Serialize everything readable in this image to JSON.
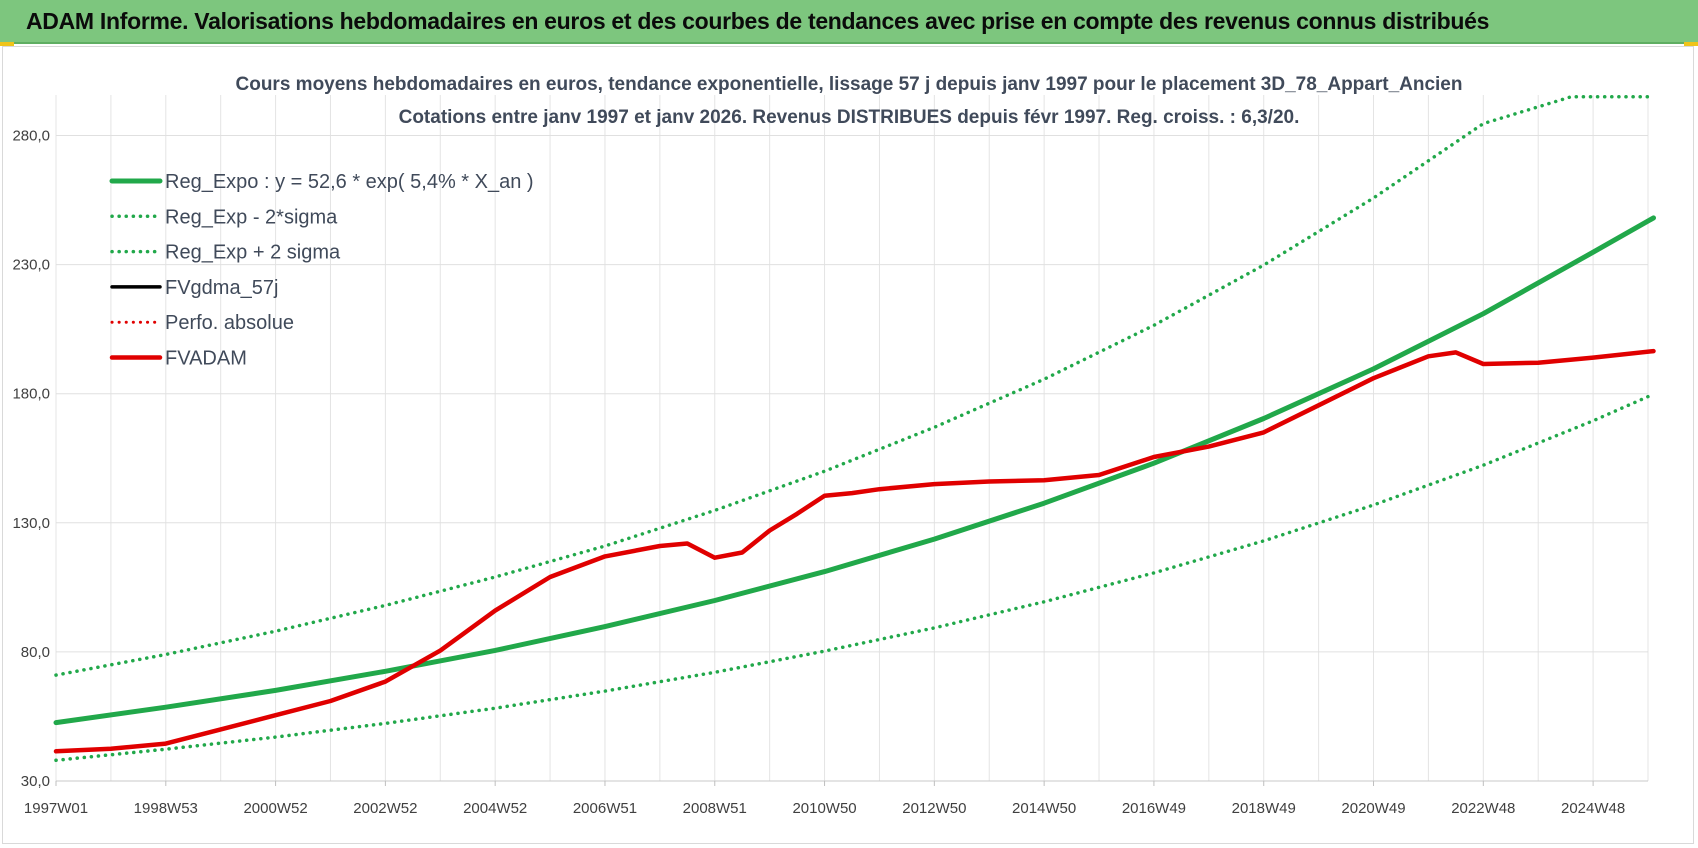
{
  "header": {
    "title": "ADAM Informe. Valorisations hebdomadaires en euros et des courbes de tendances avec prise en compte des revenus connus distribués",
    "banner_color": "#7dc67e"
  },
  "chart_data": {
    "type": "line",
    "title": "Cours moyens hebdomadaires en euros, tendance exponentielle, lissage 57 j depuis janv 1997  pour le placement 3D_78_Appart_Ancien",
    "subtitle": "Cotations entre janv 1997 et janv 2026. Revenus DISTRIBUES depuis févr 1997. Reg. croiss. : 6,3/20.",
    "xlabel": "",
    "ylabel": "",
    "x_range": [
      1997.0,
      2026.0
    ],
    "ylim": [
      30,
      295
    ],
    "yticks": [
      30,
      80,
      130,
      180,
      230,
      280
    ],
    "ytick_labels": [
      "30,0",
      "80,0",
      "130,0",
      "180,0",
      "230,0",
      "280,0"
    ],
    "xticks": [
      1997.0,
      1999.0,
      2001.0,
      2003.0,
      2005.0,
      2007.0,
      2009.0,
      2011.0,
      2013.0,
      2015.0,
      2017.0,
      2019.0,
      2021.0,
      2023.0,
      2025.0
    ],
    "xtick_labels": [
      "1997W01",
      "1998W53",
      "2000W52",
      "2002W52",
      "2004W52",
      "2006W51",
      "2008W51",
      "2010W50",
      "2012W50",
      "2014W50",
      "2016W49",
      "2018W49",
      "2020W49",
      "2022W48",
      "2024W48"
    ],
    "legend_position": "top-left",
    "grid": true,
    "series": [
      {
        "name": "Reg_Expo : y = 52,6 * exp( 5,4% *  X_an )",
        "color": "#21a84a",
        "style": "solid",
        "width": 5,
        "x": [
          1997,
          1999,
          2001,
          2003,
          2005,
          2007,
          2009,
          2011,
          2013,
          2015,
          2017,
          2019,
          2021,
          2023,
          2025,
          2026.1
        ],
        "values": [
          52.6,
          58.6,
          65.1,
          72.5,
          80.6,
          89.8,
          99.9,
          111.1,
          123.7,
          137.6,
          153.1,
          170.4,
          189.6,
          211.0,
          234.8,
          248.1
        ]
      },
      {
        "name": "Reg_Exp - 2*sigma",
        "color": "#21a84a",
        "style": "dotted",
        "width": 3.5,
        "x": [
          1997,
          1999,
          2001,
          2003,
          2005,
          2007,
          2009,
          2011,
          2013,
          2015,
          2017,
          2019,
          2021,
          2023,
          2025,
          2026.1
        ],
        "values": [
          38.0,
          42.3,
          47.0,
          52.3,
          58.2,
          64.8,
          72.1,
          80.3,
          89.3,
          99.4,
          110.6,
          123.0,
          136.9,
          152.3,
          169.5,
          179.8
        ]
      },
      {
        "name": "Reg_Exp + 2 sigma",
        "color": "#21a84a",
        "style": "dotted",
        "width": 3.5,
        "x": [
          1997,
          1999,
          2001,
          2003,
          2005,
          2007,
          2009,
          2011,
          2013,
          2015,
          2017,
          2019,
          2021,
          2023,
          2024.6,
          2026.1
        ],
        "values": [
          71.0,
          79.0,
          88.0,
          98.0,
          109.0,
          121.0,
          134.8,
          150.0,
          167.0,
          185.6,
          206.5,
          229.8,
          255.8,
          284.6,
          295.0,
          295.0
        ]
      },
      {
        "name": "FVgdma_57j",
        "color": "#000000",
        "style": "solid",
        "width": 3.5,
        "x": [
          1997,
          1998,
          1999,
          2000,
          2001,
          2002,
          2003,
          2004,
          2005,
          2006,
          2007,
          2008,
          2008.5,
          2009,
          2009.5,
          2010,
          2010.5,
          2011,
          2011.5,
          2012,
          2013,
          2014,
          2015,
          2016,
          2017,
          2018,
          2019,
          2020,
          2021,
          2022,
          2022.5,
          2023,
          2024,
          2025,
          2026.1
        ],
        "values": [
          41.5,
          42.5,
          44.5,
          50.0,
          55.5,
          61.0,
          68.5,
          80.5,
          96.0,
          109.0,
          117.0,
          121.0,
          122.0,
          116.5,
          118.5,
          127.0,
          133.5,
          140.5,
          141.5,
          143.0,
          145.0,
          146.0,
          146.5,
          148.5,
          155.5,
          159.5,
          165.0,
          175.5,
          186.0,
          194.5,
          196.0,
          191.5,
          192.0,
          194.0,
          196.5
        ]
      },
      {
        "name": "Perfo. absolue",
        "color": "#e00000",
        "style": "dotted",
        "width": 3,
        "x": [
          1997,
          1998,
          1999,
          2000,
          2001,
          2002,
          2003,
          2004,
          2005,
          2006,
          2007,
          2008,
          2008.5,
          2009,
          2009.5,
          2010,
          2010.5,
          2011,
          2011.5,
          2012,
          2013,
          2014,
          2015,
          2016,
          2017,
          2018,
          2019,
          2020,
          2021,
          2022,
          2022.5,
          2023,
          2024,
          2025,
          2026.1
        ],
        "values": [
          41.5,
          42.5,
          44.5,
          50.0,
          55.5,
          61.0,
          68.5,
          80.5,
          96.0,
          109.0,
          117.0,
          121.0,
          122.0,
          116.5,
          118.5,
          127.0,
          133.5,
          140.5,
          141.5,
          143.0,
          145.0,
          146.0,
          146.5,
          148.5,
          155.5,
          159.5,
          165.0,
          175.5,
          186.0,
          194.5,
          196.0,
          191.5,
          192.0,
          194.0,
          196.5
        ]
      },
      {
        "name": "FVADAM",
        "color": "#e00000",
        "style": "solid",
        "width": 4.5,
        "x": [
          1997,
          1998,
          1999,
          2000,
          2001,
          2002,
          2003,
          2004,
          2005,
          2006,
          2007,
          2008,
          2008.5,
          2009,
          2009.5,
          2010,
          2010.5,
          2011,
          2011.5,
          2012,
          2013,
          2014,
          2015,
          2016,
          2017,
          2018,
          2019,
          2020,
          2021,
          2022,
          2022.5,
          2023,
          2024,
          2025,
          2026.1
        ],
        "values": [
          41.5,
          42.5,
          44.5,
          50.0,
          55.5,
          61.0,
          68.5,
          80.5,
          96.0,
          109.0,
          117.0,
          121.0,
          122.0,
          116.5,
          118.5,
          127.0,
          133.5,
          140.5,
          141.5,
          143.0,
          145.0,
          146.0,
          146.5,
          148.5,
          155.5,
          159.5,
          165.0,
          175.5,
          186.0,
          194.5,
          196.0,
          191.5,
          192.0,
          194.0,
          196.5
        ]
      }
    ]
  }
}
